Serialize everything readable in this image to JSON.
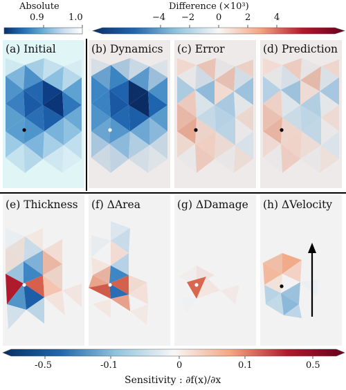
{
  "colorbars": {
    "absolute": {
      "title": "Absolute",
      "ticks": [
        {
          "label": "0.9",
          "value": 0.9
        },
        {
          "label": "1.0",
          "value": 1.0
        }
      ],
      "range": [
        0.8,
        1.0
      ],
      "colors": [
        "#08306b",
        "#2171b5",
        "#6baed6",
        "#c6dbef",
        "#ffffff"
      ]
    },
    "difference": {
      "title": "Difference (×10³)",
      "ticks": [
        {
          "label": "−4",
          "value": -4
        },
        {
          "label": "−2",
          "value": -2
        },
        {
          "label": "0",
          "value": 0
        },
        {
          "label": "2",
          "value": 2
        },
        {
          "label": "4",
          "value": 4
        }
      ],
      "range": [
        -6,
        6
      ],
      "colors": [
        "#08306b",
        "#2166ac",
        "#92c5de",
        "#f7f7f7",
        "#f4a582",
        "#b2182b",
        "#67001f"
      ]
    },
    "sensitivity": {
      "title": "Sensitivity : ∂f(x)/∂x",
      "ticks": [
        {
          "label": "-0.5",
          "value": -0.5
        },
        {
          "label": "-0.1",
          "value": -0.1
        },
        {
          "label": "0",
          "value": 0
        },
        {
          "label": "0.1",
          "value": 0.1
        },
        {
          "label": "0.5",
          "value": 0.5
        }
      ],
      "colors": [
        "#053061",
        "#2166ac",
        "#92c5de",
        "#f7f7f7",
        "#f4a582",
        "#b2182b",
        "#67001f"
      ]
    }
  },
  "panels": [
    {
      "label": "(a) Initial"
    },
    {
      "label": "(b) Dynamics"
    },
    {
      "label": "(c) Error"
    },
    {
      "label": "(d) Prediction"
    },
    {
      "label": "(e) Thickness"
    },
    {
      "label": "(f) ΔArea"
    },
    {
      "label": "(g) ΔDamage"
    },
    {
      "label": "(h) ΔVelocity"
    }
  ]
}
